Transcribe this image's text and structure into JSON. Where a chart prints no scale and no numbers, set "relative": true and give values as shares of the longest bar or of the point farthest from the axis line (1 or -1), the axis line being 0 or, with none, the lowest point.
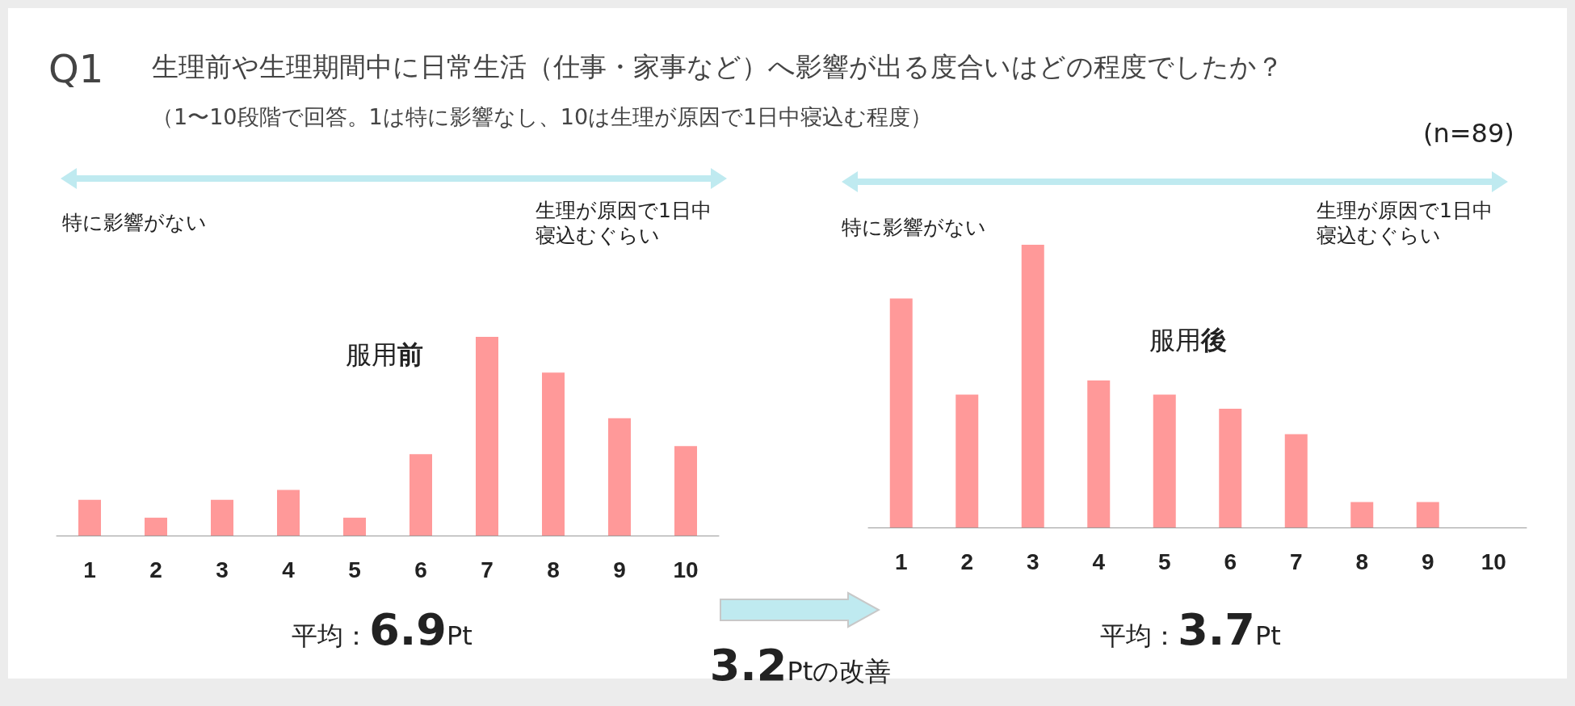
{
  "chart_data": [
    {
      "type": "bar",
      "title": "服用前",
      "relative": true,
      "color": "#ff9999",
      "categories": [
        "1",
        "2",
        "3",
        "4",
        "5",
        "6",
        "7",
        "8",
        "9",
        "10"
      ],
      "values": [
        0.18,
        0.09,
        0.18,
        0.23,
        0.09,
        0.41,
        1,
        0.82,
        0.59,
        0.45
      ],
      "annotations": [
        "Q1",
        "生理前や生理期間中に日常生活（仕事・家事など）へ影響が出る度合いはどの程度でしたか？",
        "（1〜10段階で回答。1は特に影響なし、10は生理が原因で1日中寝込む程度）",
        "特に影響がない",
        "生理が原因で1日中寝込むぐらい",
        "平均：6.9Pt"
      ]
    },
    {
      "type": "bar",
      "title": "服用後",
      "relative": true,
      "color": "#ff9999",
      "categories": [
        "1",
        "2",
        "3",
        "4",
        "5",
        "6",
        "7",
        "8",
        "9",
        "10"
      ],
      "values": [
        0.81,
        0.47,
        1,
        0.52,
        0.47,
        0.42,
        0.33,
        0.09,
        0.09,
        0
      ],
      "annotations": [
        "特に影響がない",
        "生理が原因で1日中寝込むぐらい",
        "平均：3.7Pt",
        "3.2Ptの改善",
        "(n=89)"
      ]
    }
  ]
}
